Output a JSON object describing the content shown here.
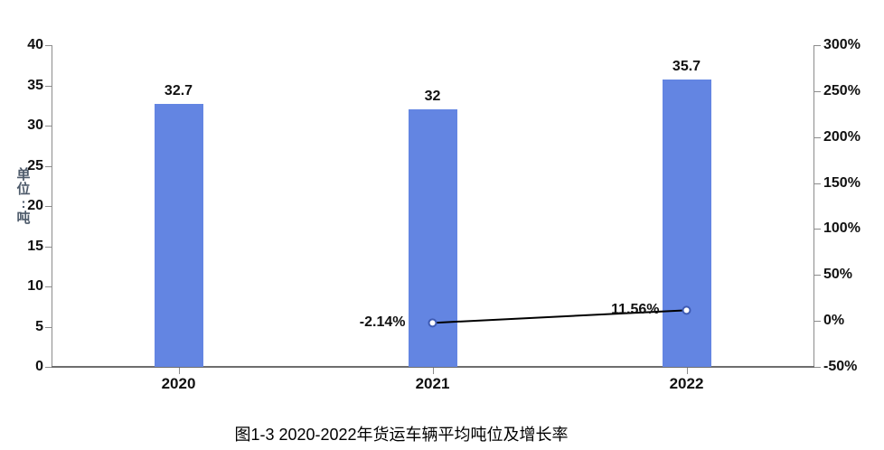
{
  "caption": "图1-3 2020-2022年货运车辆平均吨位及增长率",
  "axis_title": {
    "text": "单位:吨",
    "color": "#4e5b6b"
  },
  "colors": {
    "bar": "#6385E2",
    "line": "#000000",
    "marker_stroke": "#3f5cb5",
    "marker_fill": "#ffffff",
    "axis_line": "#8c8c8c",
    "baseline": "#6e6e6e",
    "tick_text": "#111111"
  },
  "chart_data": {
    "type": "bar",
    "subtype": "combo-bar-line-dual-axis",
    "title": "图1-3 2020-2022年货运车辆平均吨位及增长率",
    "categories": [
      "2020",
      "2021",
      "2022"
    ],
    "series": [
      {
        "name": "平均吨位",
        "type": "bar",
        "axis": "left",
        "values": [
          32.7,
          32,
          35.7
        ],
        "labels": [
          "32.7",
          "32",
          "35.7"
        ]
      },
      {
        "name": "增长率",
        "type": "line",
        "axis": "right",
        "values": [
          null,
          -2.14,
          11.56
        ],
        "labels": [
          "",
          "-2.14%",
          "11.56%"
        ]
      }
    ],
    "left_axis": {
      "label": "单位:吨",
      "min": 0,
      "max": 40,
      "step": 5
    },
    "right_axis": {
      "label": "",
      "min": -50,
      "max": 300,
      "step": 50,
      "format": "percent"
    },
    "grid": false,
    "legend": "none"
  }
}
